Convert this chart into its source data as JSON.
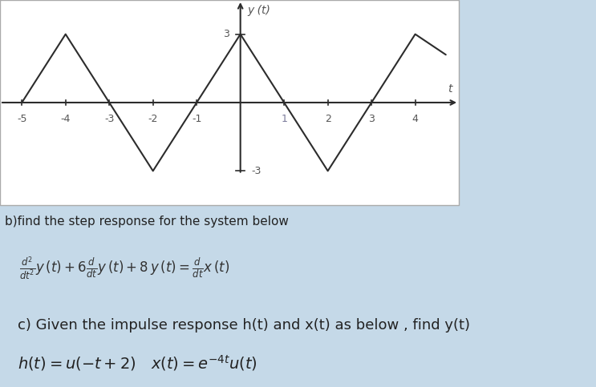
{
  "graph": {
    "x_points": [
      -5,
      -4,
      -3,
      -2,
      -1,
      0,
      1,
      2,
      3,
      4,
      4.7
    ],
    "y_points": [
      0,
      3,
      0,
      -3,
      0,
      3,
      0,
      -3,
      0,
      3,
      2.1
    ],
    "xlim": [
      -5.5,
      5.0
    ],
    "ylim": [
      -4.5,
      4.5
    ],
    "xticks": [
      -5,
      -4,
      -3,
      -2,
      -1,
      1,
      2,
      3,
      4
    ],
    "yticks_pos": [
      3
    ],
    "yticks_neg": [
      -3
    ],
    "ylabel": "y (t)",
    "xlabel": "t",
    "line_color": "#2c2c2c",
    "axis_color": "#2c2c2c",
    "bg_color": "#ffffff",
    "outer_bg": "#c8dce8"
  },
  "section_b": {
    "text": "b)find the step response for the system below",
    "fontsize": 11,
    "formula": "$\\frac{d^2}{dt^2}y\\,(t) +6\\frac{d}{dt}y\\,(t) +8\\,y\\,(t) = \\frac{d}{dt}x\\,(t)$",
    "formula_fontsize": 12,
    "box_color": "#ffffff",
    "box_border": "#cccccc"
  },
  "section_c": {
    "text": "c) Given the impulse response h(t) and x(t) as below , find y(t)",
    "fontsize": 13,
    "formula": "$h(t) = u(-t+2)\\quad x(t) = e^{-4t}u(t)$",
    "formula_fontsize": 14,
    "box_color": "#ffffff",
    "box_border": "#cccccc"
  },
  "tick_color": "#7a7a9a",
  "graph_panel_bg": "#ffffff",
  "outer_bg_color": "#c5d9e8"
}
